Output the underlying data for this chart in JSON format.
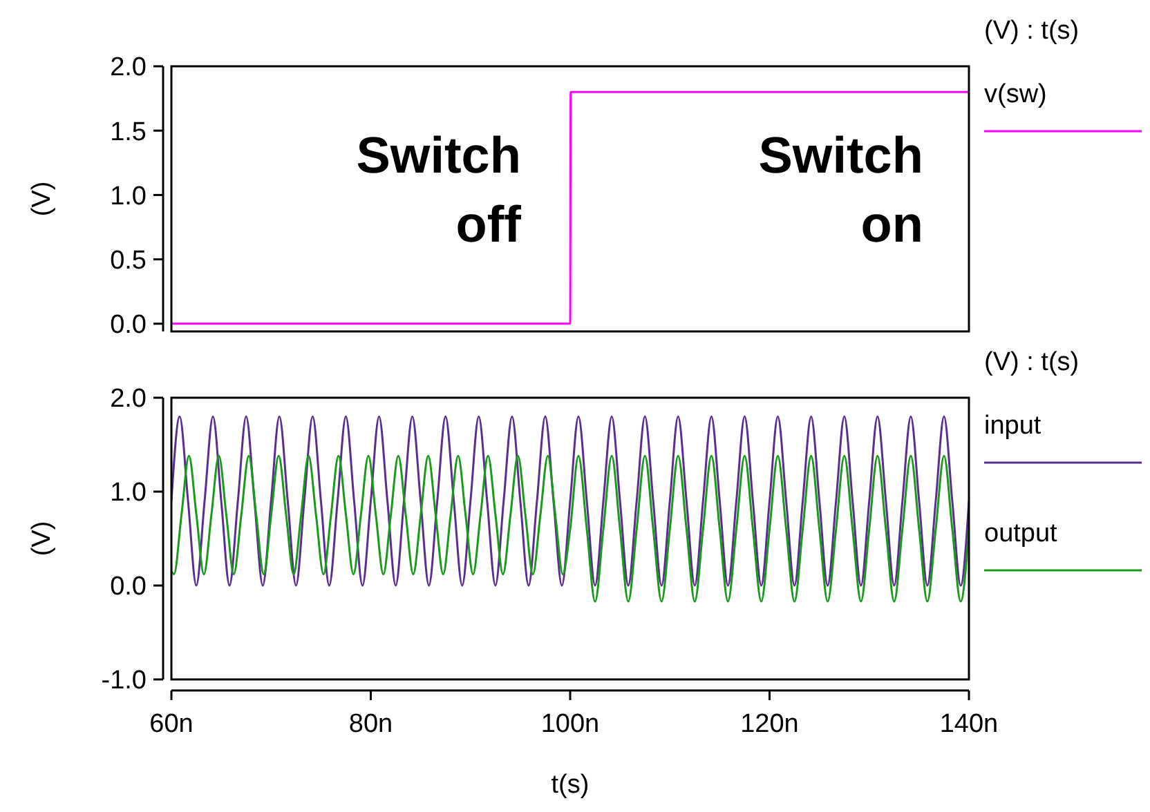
{
  "chart_data": [
    {
      "type": "line",
      "ylabel": "(V)",
      "legend_title": "(V) : t(s)",
      "legend": "right",
      "tick_labels": "y",
      "xlim": [
        60,
        140
      ],
      "ylim": [
        -0.06,
        2.0
      ],
      "yticks": [
        {
          "value": 0,
          "label": "0.0"
        },
        {
          "value": 0.5,
          "label": "0.5"
        },
        {
          "value": 1,
          "label": "1.0"
        },
        {
          "value": 1.5,
          "label": "1.5"
        },
        {
          "value": 2,
          "label": "2.0"
        }
      ],
      "annotations": [
        "Switch\noff",
        "Switch\non"
      ],
      "series": [
        {
          "name": "v(sw)",
          "color": "#ff00ff",
          "x": [
            60,
            100,
            100.05,
            140
          ],
          "values": [
            0,
            0,
            1.8,
            1.8
          ]
        }
      ]
    },
    {
      "type": "line",
      "xlabel": "t(s)",
      "ylabel": "(V)",
      "legend_title": "(V) : t(s)",
      "legend": "right",
      "xlim": [
        60,
        140
      ],
      "ylim": [
        -1,
        2
      ],
      "xticks": [
        {
          "value": 60,
          "label": "60n"
        },
        {
          "value": 80,
          "label": "80n"
        },
        {
          "value": 100,
          "label": "100n"
        },
        {
          "value": 120,
          "label": "120n"
        },
        {
          "value": 140,
          "label": "140n"
        }
      ],
      "yticks": [
        {
          "value": -1,
          "label": "-1.0"
        },
        {
          "value": 0,
          "label": "0.0"
        },
        {
          "value": 1,
          "label": "1.0"
        },
        {
          "value": 2,
          "label": "2.0"
        }
      ],
      "series": [
        {
          "name": "input",
          "color": "#5a2d91",
          "x": [
            60,
            60.83,
            61.67,
            62.5,
            63.33,
            64.17,
            65,
            65.83,
            66.67,
            67.5,
            68.33,
            69.17,
            70,
            70.83,
            71.67,
            72.5,
            73.33,
            74.17,
            75,
            75.83,
            76.67,
            77.5,
            78.33,
            79.17,
            80,
            80.83,
            81.67,
            82.5,
            83.33,
            84.17,
            85,
            85.83,
            86.67,
            87.5,
            88.33,
            89.17,
            90,
            90.83,
            91.67,
            92.5,
            93.33,
            94.17,
            95,
            95.83,
            96.67,
            97.5,
            98.33,
            99.17,
            100,
            100.83,
            101.67,
            102.5,
            103.33,
            104.17,
            105,
            105.83,
            106.67,
            107.5,
            108.33,
            109.17,
            110,
            110.83,
            111.67,
            112.5,
            113.33,
            114.17,
            115,
            115.83,
            116.67,
            117.5,
            118.33,
            119.17,
            120,
            120.83,
            121.67,
            122.5,
            123.33,
            124.17,
            125,
            125.83,
            126.67,
            127.5,
            128.33,
            129.17,
            130,
            130.83,
            131.67,
            132.5,
            133.33,
            134.17,
            135,
            135.83,
            136.67,
            137.5,
            138.33,
            139.17,
            140
          ],
          "values": [
            0.9,
            1.8,
            0.9,
            0,
            0.9,
            1.8,
            0.9,
            0,
            0.9,
            1.8,
            0.9,
            0,
            0.9,
            1.8,
            0.9,
            0,
            0.9,
            1.8,
            0.9,
            0,
            0.9,
            1.8,
            0.9,
            0,
            0.9,
            1.8,
            0.9,
            0,
            0.9,
            1.8,
            0.9,
            0,
            0.9,
            1.8,
            0.9,
            0,
            0.9,
            1.8,
            0.9,
            0,
            0.9,
            1.8,
            0.9,
            0,
            0.9,
            1.8,
            0.9,
            0,
            0.9,
            1.8,
            0.9,
            0,
            0.9,
            1.8,
            0.9,
            0,
            0.9,
            1.8,
            0.9,
            0,
            0.9,
            1.8,
            0.9,
            0,
            0.9,
            1.8,
            0.9,
            0,
            0.9,
            1.8,
            0.9,
            0,
            0.9,
            1.8,
            0.9,
            0,
            0.9,
            1.8,
            0.9,
            0,
            0.9,
            1.8,
            0.9,
            0,
            0.9,
            1.8,
            0.9,
            0,
            0.9,
            1.8,
            0.9,
            0,
            0.9,
            1.8,
            0.9,
            0,
            0.9
          ]
        },
        {
          "name": "output",
          "color": "#1a9a1a",
          "x": [
            60,
            60.26,
            61.01,
            61.76,
            62.51,
            63.26,
            64.01,
            64.76,
            65.51,
            66.26,
            67.01,
            67.76,
            68.51,
            69.26,
            70.01,
            70.76,
            71.51,
            72.26,
            73.01,
            73.76,
            74.51,
            75.26,
            76.01,
            76.76,
            77.51,
            78.26,
            79.01,
            79.76,
            80.51,
            81.26,
            82.01,
            82.76,
            83.51,
            84.26,
            85.01,
            85.76,
            86.51,
            87.26,
            88.01,
            88.76,
            89.51,
            90.26,
            91.01,
            91.76,
            92.51,
            93.26,
            94.01,
            94.76,
            95.51,
            96.26,
            97.01,
            97.76,
            98.51,
            99.26,
            100,
            100.83,
            101.67,
            102.5,
            103.33,
            104.17,
            105,
            105.83,
            106.67,
            107.5,
            108.33,
            109.17,
            110,
            110.83,
            111.67,
            112.5,
            113.33,
            114.17,
            115,
            115.83,
            116.67,
            117.5,
            118.33,
            119.17,
            120,
            120.83,
            121.67,
            122.5,
            123.33,
            124.17,
            125,
            125.83,
            126.67,
            127.5,
            128.33,
            129.17,
            130,
            130.83,
            131.67,
            132.5,
            133.33,
            134.17,
            135,
            135.83,
            136.67,
            137.5,
            138.33,
            139.17,
            140
          ],
          "values": [
            0.15,
            0.12,
            0.75,
            1.38,
            0.75,
            0.12,
            0.75,
            1.38,
            0.75,
            0.12,
            0.75,
            1.38,
            0.75,
            0.12,
            0.75,
            1.38,
            0.75,
            0.12,
            0.75,
            1.38,
            0.75,
            0.12,
            0.75,
            1.38,
            0.75,
            0.12,
            0.75,
            1.38,
            0.75,
            0.12,
            0.75,
            1.38,
            0.75,
            0.12,
            0.75,
            1.38,
            0.75,
            0.12,
            0.75,
            1.38,
            0.75,
            0.12,
            0.75,
            1.38,
            0.75,
            0.12,
            0.75,
            1.38,
            0.75,
            0.12,
            0.75,
            1.38,
            0.75,
            0.12,
            0.6,
            1.38,
            0.6,
            -0.17,
            0.6,
            1.38,
            0.6,
            -0.17,
            0.6,
            1.38,
            0.6,
            -0.17,
            0.6,
            1.38,
            0.6,
            -0.17,
            0.6,
            1.38,
            0.6,
            -0.17,
            0.6,
            1.38,
            0.6,
            -0.17,
            0.6,
            1.38,
            0.6,
            -0.17,
            0.6,
            1.38,
            0.6,
            -0.17,
            0.6,
            1.38,
            0.6,
            -0.17,
            0.6,
            1.38,
            0.6,
            -0.17,
            0.6,
            1.38,
            0.6,
            -0.17,
            0.6,
            1.38,
            0.6,
            -0.17,
            0.6
          ]
        }
      ]
    }
  ]
}
